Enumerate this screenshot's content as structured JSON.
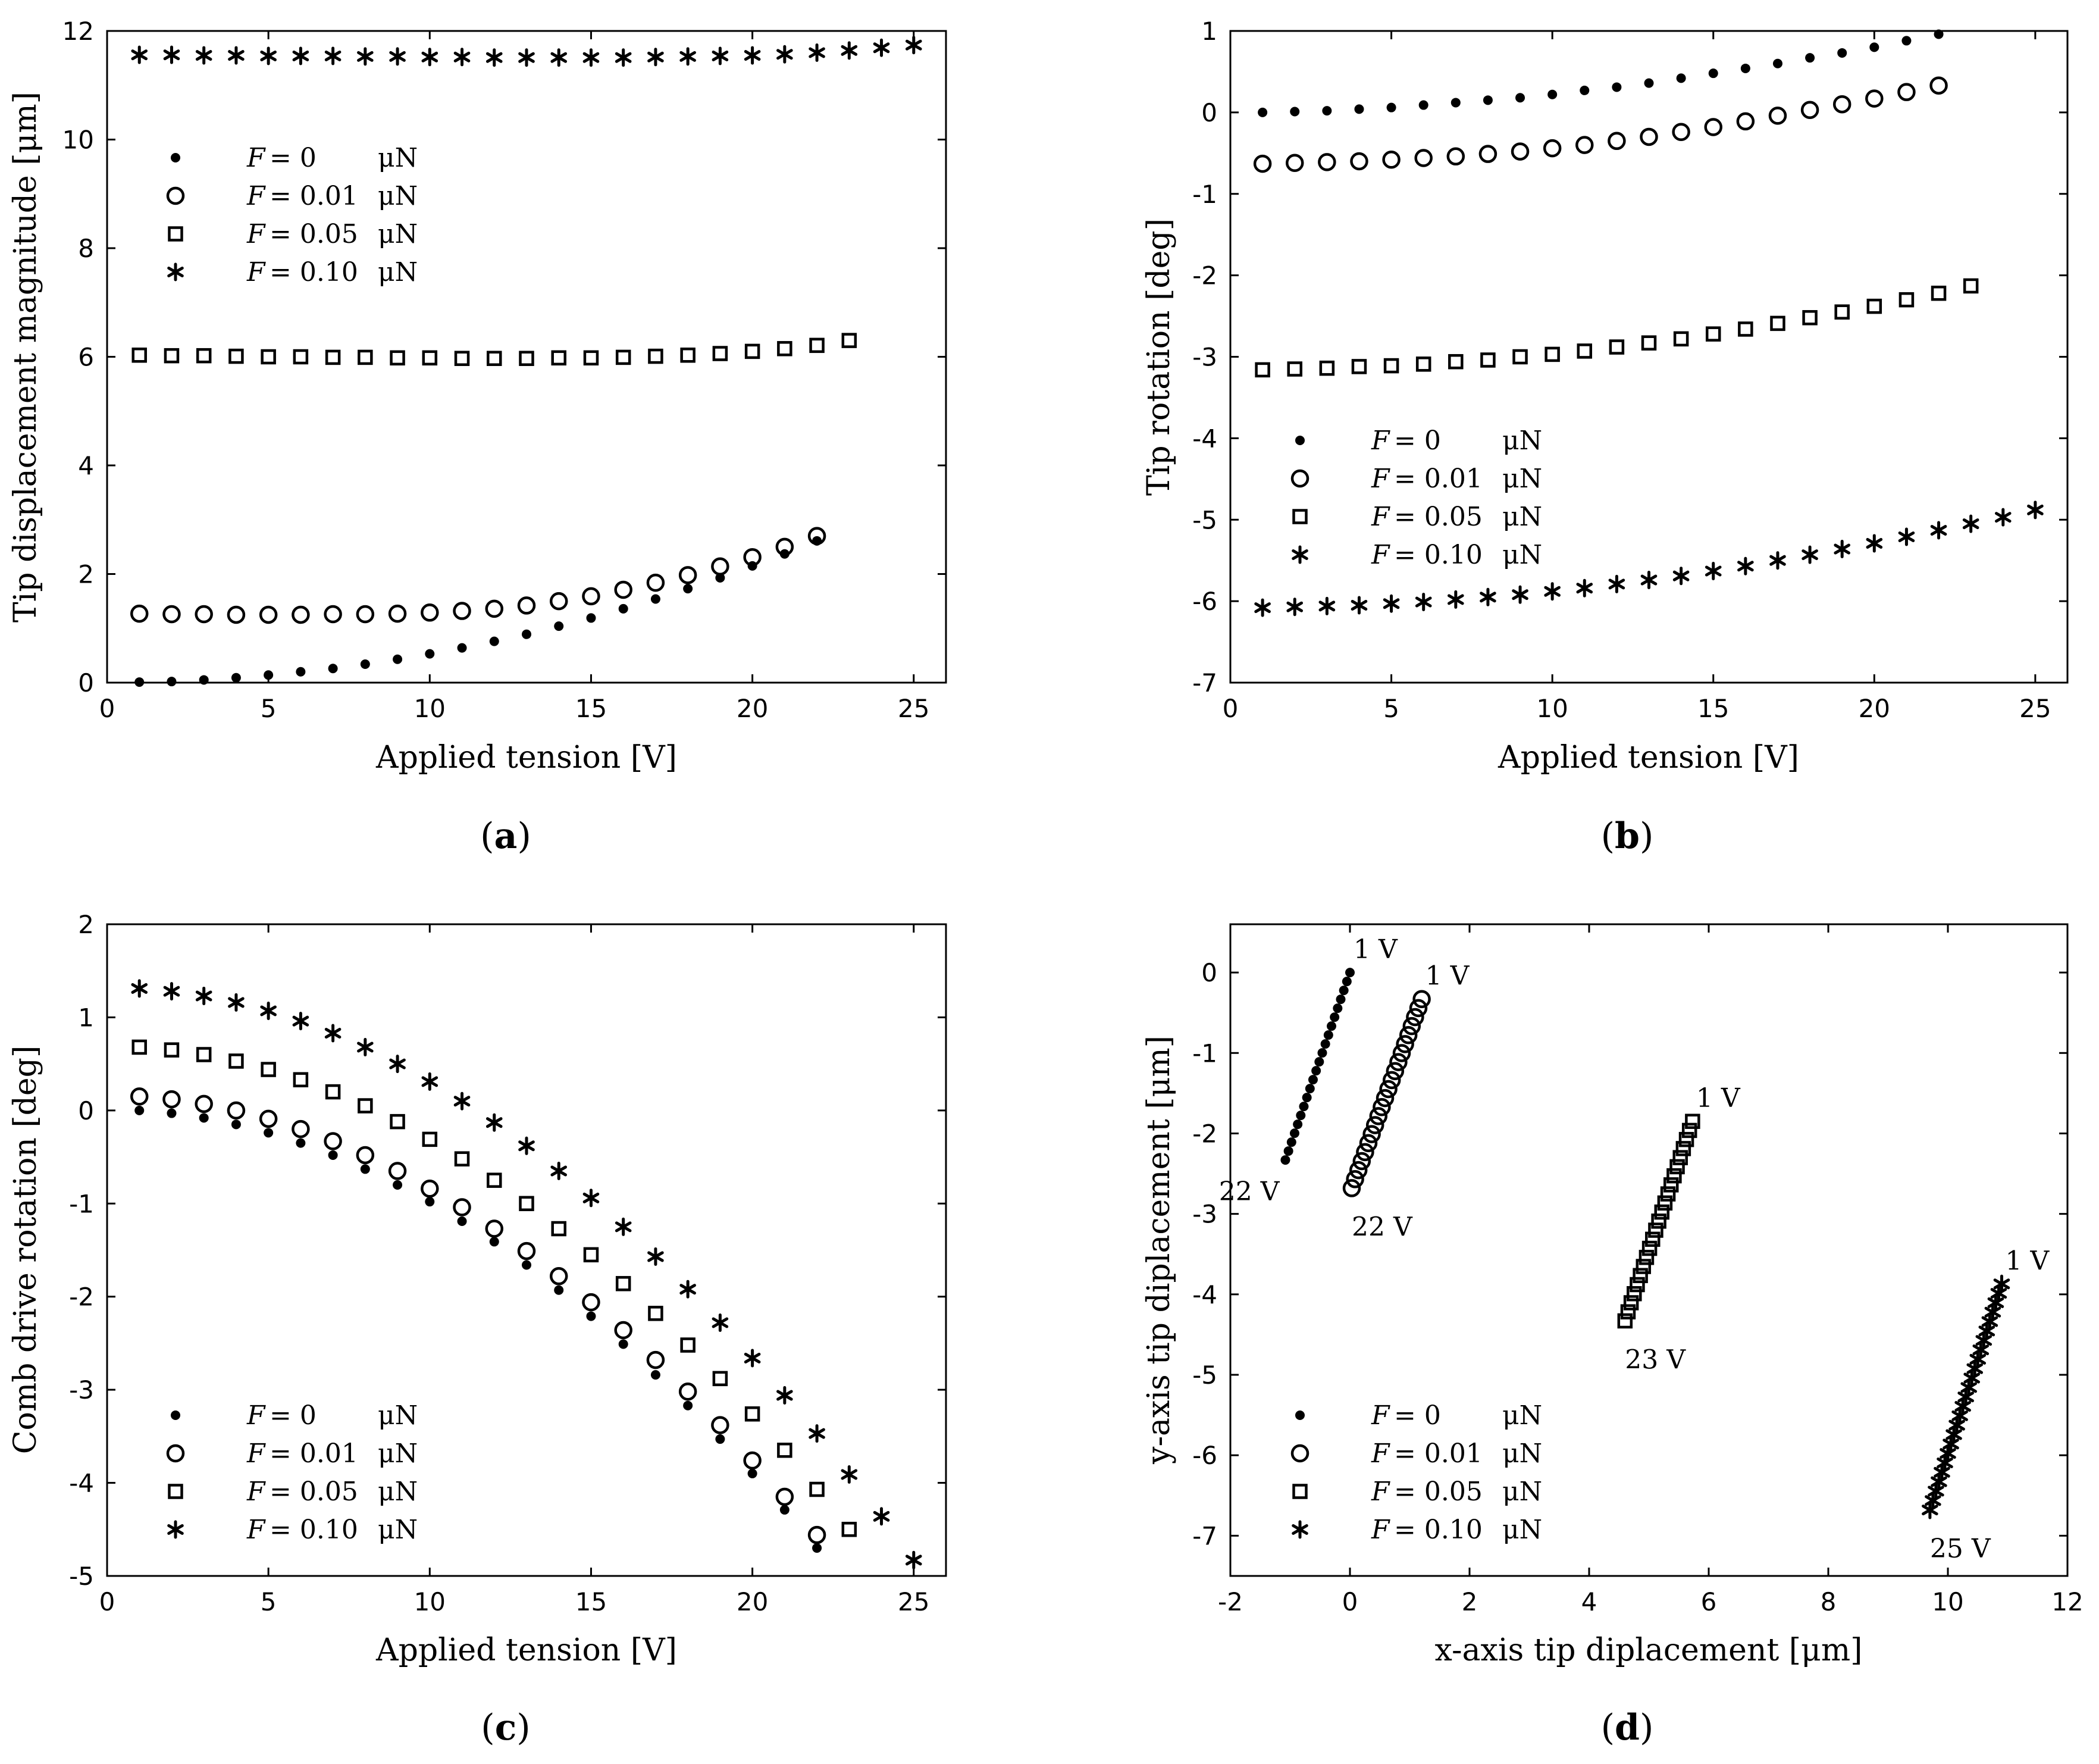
{
  "chart_data": [
    {
      "panel": "a",
      "type": "scatter",
      "xlabel": "Applied tension [V]",
      "ylabel": "Tip displacement magnitude [μm]",
      "xlim": [
        0,
        26
      ],
      "ylim": [
        0,
        12
      ],
      "xticks": [
        0,
        5,
        10,
        15,
        20,
        25
      ],
      "yticks": [
        0,
        2,
        4,
        6,
        8,
        10,
        12
      ],
      "legend_position": "upper-left",
      "series": [
        {
          "name": "F = 0 μN",
          "marker": "dot",
          "x": [
            1,
            2,
            3,
            4,
            5,
            6,
            7,
            8,
            9,
            10,
            11,
            12,
            13,
            14,
            15,
            16,
            17,
            18,
            19,
            20,
            21,
            22
          ],
          "y": [
            0.01,
            0.02,
            0.05,
            0.09,
            0.14,
            0.2,
            0.26,
            0.34,
            0.43,
            0.53,
            0.64,
            0.76,
            0.89,
            1.04,
            1.19,
            1.36,
            1.54,
            1.73,
            1.93,
            2.15,
            2.37,
            2.61
          ]
        },
        {
          "name": "F = 0.01 μN",
          "marker": "circle",
          "x": [
            1,
            2,
            3,
            4,
            5,
            6,
            7,
            8,
            9,
            10,
            11,
            12,
            13,
            14,
            15,
            16,
            17,
            18,
            19,
            20,
            21,
            22
          ],
          "y": [
            1.27,
            1.26,
            1.26,
            1.25,
            1.25,
            1.25,
            1.26,
            1.26,
            1.27,
            1.29,
            1.32,
            1.36,
            1.42,
            1.5,
            1.59,
            1.71,
            1.84,
            1.98,
            2.14,
            2.31,
            2.5,
            2.7
          ]
        },
        {
          "name": "F = 0.05 μN",
          "marker": "square",
          "x": [
            1,
            2,
            3,
            4,
            5,
            6,
            7,
            8,
            9,
            10,
            11,
            12,
            13,
            14,
            15,
            16,
            17,
            18,
            19,
            20,
            21,
            22,
            23
          ],
          "y": [
            6.03,
            6.02,
            6.02,
            6.01,
            6.0,
            6.0,
            5.99,
            5.99,
            5.98,
            5.98,
            5.97,
            5.97,
            5.97,
            5.98,
            5.98,
            5.99,
            6.01,
            6.03,
            6.06,
            6.1,
            6.15,
            6.21,
            6.3
          ]
        },
        {
          "name": "F = 0.10 μN",
          "marker": "star",
          "x": [
            1,
            2,
            3,
            4,
            5,
            6,
            7,
            8,
            9,
            10,
            11,
            12,
            13,
            14,
            15,
            16,
            17,
            18,
            19,
            20,
            21,
            22,
            23,
            24,
            25
          ],
          "y": [
            11.56,
            11.56,
            11.55,
            11.55,
            11.54,
            11.54,
            11.54,
            11.53,
            11.53,
            11.52,
            11.52,
            11.51,
            11.51,
            11.51,
            11.51,
            11.51,
            11.52,
            11.53,
            11.54,
            11.55,
            11.57,
            11.6,
            11.64,
            11.69,
            11.74
          ]
        }
      ]
    },
    {
      "panel": "b",
      "type": "scatter",
      "xlabel": "Applied tension [V]",
      "ylabel": "Tip rotation [deg]",
      "xlim": [
        0,
        26
      ],
      "ylim": [
        -7,
        1
      ],
      "xticks": [
        0,
        5,
        10,
        15,
        20,
        25
      ],
      "yticks": [
        -7,
        -6,
        -5,
        -4,
        -3,
        -2,
        -1,
        0,
        1
      ],
      "legend_position": "lower-left",
      "series": [
        {
          "name": "F = 0 μN",
          "marker": "dot",
          "x": [
            1,
            2,
            3,
            4,
            5,
            6,
            7,
            8,
            9,
            10,
            11,
            12,
            13,
            14,
            15,
            16,
            17,
            18,
            19,
            20,
            21,
            22
          ],
          "y": [
            0.0,
            0.01,
            0.02,
            0.04,
            0.06,
            0.09,
            0.12,
            0.15,
            0.18,
            0.22,
            0.27,
            0.31,
            0.36,
            0.42,
            0.48,
            0.54,
            0.6,
            0.67,
            0.73,
            0.8,
            0.88,
            0.96
          ]
        },
        {
          "name": "F = 0.01 μN",
          "marker": "circle",
          "x": [
            1,
            2,
            3,
            4,
            5,
            6,
            7,
            8,
            9,
            10,
            11,
            12,
            13,
            14,
            15,
            16,
            17,
            18,
            19,
            20,
            21,
            22
          ],
          "y": [
            -0.63,
            -0.62,
            -0.61,
            -0.6,
            -0.58,
            -0.56,
            -0.54,
            -0.51,
            -0.48,
            -0.44,
            -0.4,
            -0.35,
            -0.3,
            -0.24,
            -0.18,
            -0.11,
            -0.04,
            0.03,
            0.1,
            0.17,
            0.25,
            0.33
          ]
        },
        {
          "name": "F = 0.05 μN",
          "marker": "square",
          "x": [
            1,
            2,
            3,
            4,
            5,
            6,
            7,
            8,
            9,
            10,
            11,
            12,
            13,
            14,
            15,
            16,
            17,
            18,
            19,
            20,
            21,
            22,
            23
          ],
          "y": [
            -3.16,
            -3.15,
            -3.14,
            -3.12,
            -3.11,
            -3.09,
            -3.06,
            -3.04,
            -3.0,
            -2.97,
            -2.93,
            -2.88,
            -2.83,
            -2.78,
            -2.72,
            -2.66,
            -2.59,
            -2.52,
            -2.45,
            -2.38,
            -2.3,
            -2.22,
            -2.13
          ]
        },
        {
          "name": "F = 0.10 μN",
          "marker": "star",
          "x": [
            1,
            2,
            3,
            4,
            5,
            6,
            7,
            8,
            9,
            10,
            11,
            12,
            13,
            14,
            15,
            16,
            17,
            18,
            19,
            20,
            21,
            22,
            23,
            24,
            25
          ],
          "y": [
            -6.08,
            -6.07,
            -6.06,
            -6.05,
            -6.03,
            -6.01,
            -5.98,
            -5.95,
            -5.92,
            -5.88,
            -5.84,
            -5.79,
            -5.74,
            -5.69,
            -5.63,
            -5.57,
            -5.5,
            -5.43,
            -5.36,
            -5.29,
            -5.21,
            -5.13,
            -5.05,
            -4.97,
            -4.88
          ]
        }
      ]
    },
    {
      "panel": "c",
      "type": "scatter",
      "xlabel": "Applied tension [V]",
      "ylabel": "Comb drive rotation [deg]",
      "xlim": [
        0,
        26
      ],
      "ylim": [
        -5,
        2
      ],
      "xticks": [
        0,
        5,
        10,
        15,
        20,
        25
      ],
      "yticks": [
        -5,
        -4,
        -3,
        -2,
        -1,
        0,
        1,
        2
      ],
      "legend_position": "lower-left",
      "series": [
        {
          "name": "F = 0 μN",
          "marker": "dot",
          "x": [
            1,
            2,
            3,
            4,
            5,
            6,
            7,
            8,
            9,
            10,
            11,
            12,
            13,
            14,
            15,
            16,
            17,
            18,
            19,
            20,
            21,
            22
          ],
          "y": [
            0.0,
            -0.03,
            -0.08,
            -0.15,
            -0.24,
            -0.35,
            -0.48,
            -0.63,
            -0.8,
            -0.98,
            -1.19,
            -1.41,
            -1.66,
            -1.93,
            -2.21,
            -2.51,
            -2.84,
            -3.17,
            -3.53,
            -3.9,
            -4.29,
            -4.7
          ]
        },
        {
          "name": "F = 0.01 μN",
          "marker": "circle",
          "x": [
            1,
            2,
            3,
            4,
            5,
            6,
            7,
            8,
            9,
            10,
            11,
            12,
            13,
            14,
            15,
            16,
            17,
            18,
            19,
            20,
            21,
            22
          ],
          "y": [
            0.15,
            0.12,
            0.07,
            0.0,
            -0.09,
            -0.2,
            -0.33,
            -0.48,
            -0.65,
            -0.84,
            -1.04,
            -1.27,
            -1.51,
            -1.78,
            -2.06,
            -2.36,
            -2.68,
            -3.02,
            -3.38,
            -3.76,
            -4.15,
            -4.56
          ]
        },
        {
          "name": "F = 0.05 μN",
          "marker": "square",
          "x": [
            1,
            2,
            3,
            4,
            5,
            6,
            7,
            8,
            9,
            10,
            11,
            12,
            13,
            14,
            15,
            16,
            17,
            18,
            19,
            20,
            21,
            22,
            23
          ],
          "y": [
            0.68,
            0.65,
            0.6,
            0.53,
            0.44,
            0.33,
            0.2,
            0.05,
            -0.12,
            -0.31,
            -0.52,
            -0.75,
            -1.0,
            -1.27,
            -1.55,
            -1.86,
            -2.18,
            -2.52,
            -2.88,
            -3.26,
            -3.65,
            -4.07,
            -4.5
          ]
        },
        {
          "name": "F = 0.10 μN",
          "marker": "star",
          "x": [
            1,
            2,
            3,
            4,
            5,
            6,
            7,
            8,
            9,
            10,
            11,
            12,
            13,
            14,
            15,
            16,
            17,
            18,
            19,
            20,
            21,
            22,
            23,
            24,
            25
          ],
          "y": [
            1.31,
            1.28,
            1.23,
            1.16,
            1.07,
            0.96,
            0.83,
            0.68,
            0.5,
            0.31,
            0.1,
            -0.13,
            -0.38,
            -0.65,
            -0.94,
            -1.25,
            -1.57,
            -1.92,
            -2.28,
            -2.66,
            -3.06,
            -3.47,
            -3.91,
            -4.36,
            -4.83
          ]
        }
      ]
    },
    {
      "panel": "d",
      "type": "scatter",
      "xlabel": "x-axis tip diplacement [μm]",
      "ylabel": "y-axis tip diplacement [μm]",
      "xlim": [
        -2,
        12
      ],
      "ylim": [
        -7.5,
        0.6
      ],
      "xticks": [
        -2,
        0,
        2,
        4,
        6,
        8,
        10,
        12
      ],
      "yticks": [
        -7,
        -6,
        -5,
        -4,
        -3,
        -2,
        -1,
        0
      ],
      "legend_position": "lower-left",
      "series": [
        {
          "name": "F = 0 μN",
          "marker": "dot",
          "start": [
            0.0,
            0.0
          ],
          "end": [
            -1.08,
            -2.33
          ],
          "count": 22
        },
        {
          "name": "F = 0.01 μN",
          "marker": "circle",
          "start": [
            1.2,
            -0.33
          ],
          "end": [
            0.03,
            -2.68
          ],
          "count": 22
        },
        {
          "name": "F = 0.05 μN",
          "marker": "square",
          "start": [
            5.73,
            -1.85
          ],
          "end": [
            4.6,
            -4.33
          ],
          "count": 23
        },
        {
          "name": "F = 0.10 μN",
          "marker": "star",
          "start": [
            10.9,
            -3.87
          ],
          "end": [
            9.7,
            -6.68
          ],
          "count": 25
        }
      ],
      "annotations": [
        {
          "text": "1 V",
          "x": 0.0,
          "y": 0.0,
          "anchor": "above-right"
        },
        {
          "text": "22 V",
          "x": -1.08,
          "y": -2.33,
          "anchor": "below-left"
        },
        {
          "text": "1 V",
          "x": 1.2,
          "y": -0.33,
          "anchor": "above-right"
        },
        {
          "text": "22 V",
          "x": 0.03,
          "y": -2.68,
          "anchor": "below-right"
        },
        {
          "text": "1 V",
          "x": 5.73,
          "y": -1.85,
          "anchor": "above-right"
        },
        {
          "text": "23 V",
          "x": 4.6,
          "y": -4.33,
          "anchor": "below-right"
        },
        {
          "text": "1 V",
          "x": 10.9,
          "y": -3.87,
          "anchor": "above-right"
        },
        {
          "text": "25 V",
          "x": 9.7,
          "y": -6.68,
          "anchor": "below-right"
        }
      ]
    }
  ],
  "legend_labels": [
    {
      "italic": "F",
      "value": "= 0",
      "unit": "μN"
    },
    {
      "italic": "F",
      "value": "= 0.01",
      "unit": "μN"
    },
    {
      "italic": "F",
      "value": "= 0.05",
      "unit": "μN"
    },
    {
      "italic": "F",
      "value": "= 0.10",
      "unit": "μN"
    }
  ],
  "panel_labels": {
    "a": "a",
    "b": "b",
    "c": "c",
    "d": "d"
  },
  "colors": {
    "ink": "#000000",
    "background": "#ffffff"
  }
}
